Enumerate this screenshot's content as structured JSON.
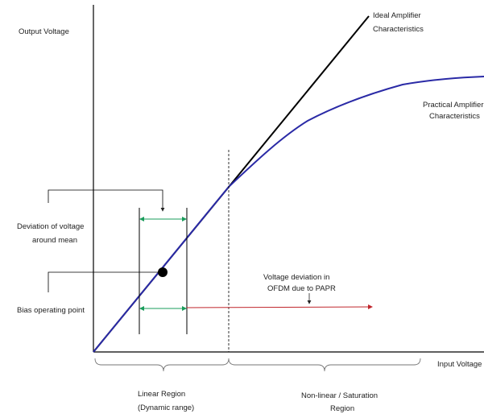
{
  "axes": {
    "y_label": "Output Voltage",
    "x_label": "Input Voltage"
  },
  "curves": {
    "ideal": {
      "line1": "Ideal Amplifier",
      "line2": "Characteristics",
      "color": "#000000"
    },
    "practical": {
      "line1": "Practical  Amplifier",
      "line2": "Characteristics",
      "color": "#2a2aa6"
    }
  },
  "annotations": {
    "deviation": {
      "line1": "Deviation of voltage",
      "line2": "around mean",
      "color": "#1a9c5b"
    },
    "bias": {
      "label": "Bias operating point"
    },
    "ofdm": {
      "line1": "Voltage deviation in",
      "line2": "OFDM due to PAPR",
      "color": "#c0262c"
    }
  },
  "regions": {
    "linear": {
      "line1": "Linear Region",
      "line2": "(Dynamic range)"
    },
    "nonlinear": {
      "line1": "Non-linear / Saturation",
      "line2": "Region"
    }
  }
}
